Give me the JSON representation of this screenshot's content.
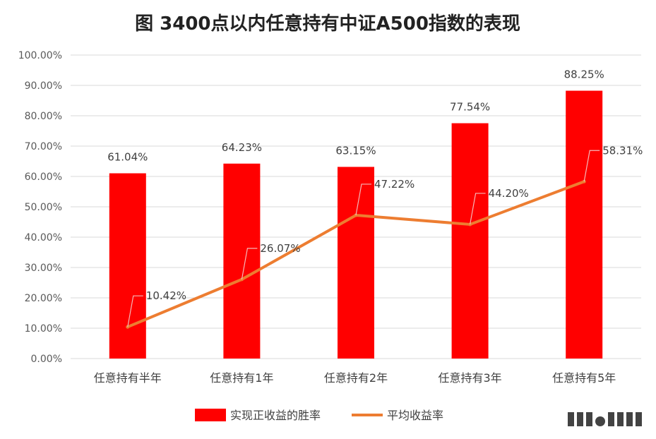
{
  "chart_data": {
    "type": "bar",
    "title": "图 3400点以内任意持有中证A500指数的表现",
    "categories": [
      "任意持有半年",
      "任意持有1年",
      "任意持有2年",
      "任意持有3年",
      "任意持有5年"
    ],
    "ylim": [
      0,
      100
    ],
    "y_ticks": [
      "0.00%",
      "10.00%",
      "20.00%",
      "30.00%",
      "40.00%",
      "50.00%",
      "60.00%",
      "70.00%",
      "80.00%",
      "90.00%",
      "100.00%"
    ],
    "grid": true,
    "legend_position": "bottom",
    "series": [
      {
        "name": "实现正收益的胜率",
        "kind": "bar",
        "color": "#ff0000",
        "values": [
          61.04,
          64.23,
          63.15,
          77.54,
          88.25
        ],
        "labels": [
          "61.04%",
          "64.23%",
          "63.15%",
          "77.54%",
          "88.25%"
        ]
      },
      {
        "name": "平均收益率",
        "kind": "line",
        "color": "#ed7d31",
        "values": [
          10.42,
          26.07,
          47.22,
          44.2,
          58.31
        ],
        "labels": [
          "10.42%",
          "26.07%",
          "47.22%",
          "44.20%",
          "58.31%"
        ]
      }
    ]
  }
}
